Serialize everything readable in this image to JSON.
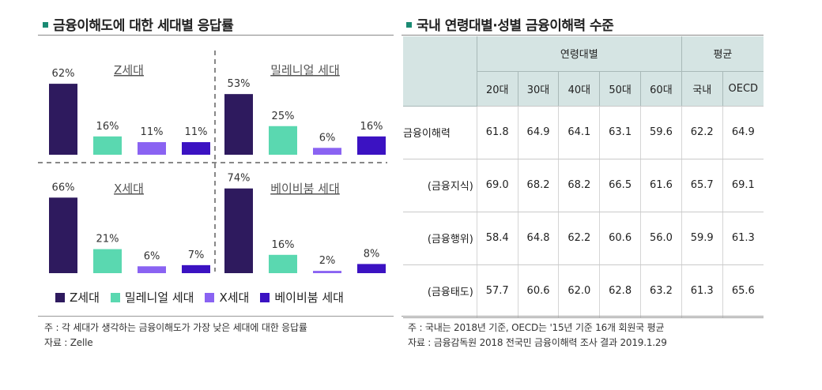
{
  "left_panel": {
    "title": "금융이해도에 대한 세대별 응답률",
    "note": "주 : 각 세대가 생각하는 금융이해도가 가장 낮은 세대에 대한 응답률",
    "source": "자료 : Zelle"
  },
  "right_panel": {
    "title": "국내 연령대별·성별 금융이해력 수준",
    "note": "주 : 국내는 2018년 기준, OECD는 '15년 기준 16개 회원국 평균",
    "source": "자료 : 금융감독원 2018 전국민 금융이해력 조사 결과 2019.1.29"
  },
  "chart_data": [
    {
      "type": "bar",
      "title": "Z세대",
      "categories": [
        "Z세대",
        "밀레니얼 세대",
        "X세대",
        "베이비붐 세대"
      ],
      "values": [
        62,
        16,
        11,
        11
      ],
      "value_suffix": "%",
      "ylim": [
        0,
        80
      ]
    },
    {
      "type": "bar",
      "title": "밀레니얼 세대",
      "categories": [
        "Z세대",
        "밀레니얼 세대",
        "X세대",
        "베이비붐 세대"
      ],
      "values": [
        53,
        25,
        6,
        16
      ],
      "value_suffix": "%",
      "ylim": [
        0,
        80
      ]
    },
    {
      "type": "bar",
      "title": "X세대",
      "categories": [
        "Z세대",
        "밀레니얼 세대",
        "X세대",
        "베이비붐 세대"
      ],
      "values": [
        66,
        21,
        6,
        7
      ],
      "value_suffix": "%",
      "ylim": [
        0,
        80
      ]
    },
    {
      "type": "bar",
      "title": "베이비붐 세대",
      "categories": [
        "Z세대",
        "밀레니얼 세대",
        "X세대",
        "베이비붐 세대"
      ],
      "values": [
        74,
        16,
        2,
        8
      ],
      "value_suffix": "%",
      "ylim": [
        0,
        80
      ]
    },
    {
      "type": "table",
      "group_headers": [
        {
          "label": "연령대별",
          "span": 5
        },
        {
          "label": "평균",
          "span": 2
        }
      ],
      "columns": [
        "20대",
        "30대",
        "40대",
        "50대",
        "60대",
        "국내",
        "OECD"
      ],
      "rows": [
        {
          "label": "금융이해력",
          "values": [
            "61.8",
            "64.9",
            "64.1",
            "63.1",
            "59.6",
            "62.2",
            "64.9"
          ]
        },
        {
          "label": "(금융지식)",
          "values": [
            "69.0",
            "68.2",
            "68.2",
            "66.5",
            "61.6",
            "65.7",
            "69.1"
          ]
        },
        {
          "label": "(금융행위)",
          "values": [
            "58.4",
            "64.8",
            "62.2",
            "60.6",
            "56.0",
            "59.9",
            "61.3"
          ]
        },
        {
          "label": "(금융태도)",
          "values": [
            "57.7",
            "60.6",
            "62.0",
            "62.8",
            "63.2",
            "61.3",
            "65.6"
          ]
        }
      ]
    }
  ],
  "legend": [
    {
      "label": "Z세대",
      "color": "#2e1a5e"
    },
    {
      "label": "밀레니얼 세대",
      "color": "#5ad8b0"
    },
    {
      "label": "X세대",
      "color": "#8a63f2"
    },
    {
      "label": "베이비붐 세대",
      "color": "#3b12c2"
    }
  ]
}
